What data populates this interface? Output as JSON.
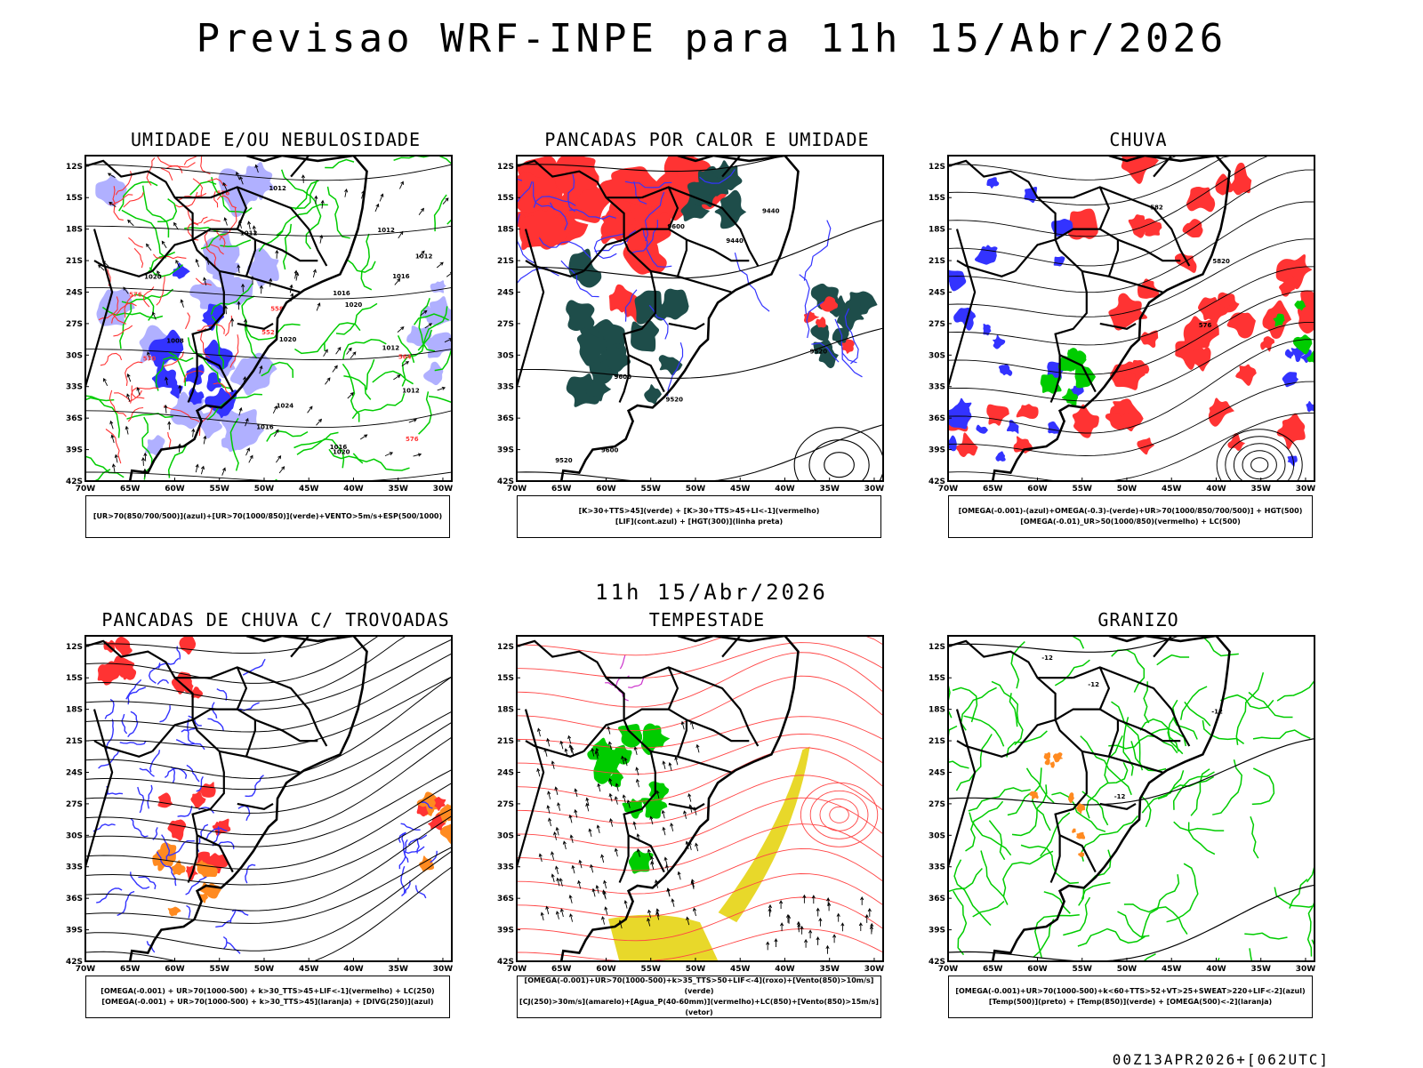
{
  "title": "Previsao WRF-INPE  para 11h 15/Abr/2026",
  "subtitle": "11h 15/Abr/2026",
  "footer": "00Z13APR2026+[062UTC]",
  "axes": {
    "lat_labels": [
      "12S",
      "15S",
      "18S",
      "21S",
      "24S",
      "27S",
      "30S",
      "33S",
      "36S",
      "39S",
      "42S"
    ],
    "lon_labels": [
      "70W",
      "65W",
      "60W",
      "55W",
      "50W",
      "45W",
      "40W",
      "35W",
      "30W"
    ]
  },
  "colors": {
    "red": "#ff3333",
    "blue": "#3333ff",
    "green": "#00cc00",
    "lightblue": "#b0b0ff",
    "darkteal": "#1e4d4a",
    "orange": "#ff8a20",
    "yellow": "#e8d82a",
    "magenta": "#cc33cc"
  },
  "panels": [
    {
      "id": "umidade",
      "title": "UMIDADE E/OU NEBULOSIDADE",
      "legend": [
        "[UR>70(850/700/500)](azul)+[UR>70(1000/850)](verde)+VENTO>5m/s+ESP(500/1000)"
      ],
      "contour_labels": [
        "1012",
        "1012",
        "1012",
        "1016",
        "1012",
        "1016",
        "1012",
        "1008",
        "1020",
        "1016",
        "1012",
        "1016",
        "1020",
        "1020",
        "1024",
        "1020",
        "570",
        "576",
        "576",
        "576",
        "552",
        "558",
        "564"
      ]
    },
    {
      "id": "pancadas_calor",
      "title": "PANCADAS POR CALOR E UMIDADE",
      "legend": [
        "[K>30+TTS>45](verde) + [K>30+TTS>45+LI<-1](vermelho)",
        "[LIF](cont.azul) + [HGT(300)](linha preta)"
      ],
      "contour_labels": [
        "9520",
        "9600",
        "9600",
        "9600",
        "9520",
        "9440",
        "9520",
        "9440"
      ]
    },
    {
      "id": "chuva",
      "title": "CHUVA",
      "legend": [
        "[OMEGA(-0.001)-(azul)+OMEGA(-0.3)-(verde)+UR>70(1000/850/700/500)] + HGT(500)",
        "[OMEGA(-0.01)_UR>50(1000/850)(vermelho) + LC(500)"
      ],
      "contour_labels": [
        "5820",
        "582",
        "576"
      ]
    },
    {
      "id": "pancadas_trovoadas",
      "title": "PANCADAS DE CHUVA C/ TROVOADAS",
      "legend": [
        "[OMEGA(-0.001) + UR>70(1000-500) + k>30_TTS>45+LIF<-1](vermelho) + LC(250)",
        "[OMEGA(-0.001) + UR>70(1000-500) + k>30_TTS>45](laranja) + [DIVG(250)](azul)"
      ],
      "contour_labels": []
    },
    {
      "id": "tempestade",
      "title": "TEMPESTADE",
      "legend": [
        "[OMEGA(-0.001)+UR>70(1000-500)+k>35_TTS>50+LIF<-4](roxo)+[Vento(850)>10m/s](verde)",
        "[CJ(250)>30m/s](amarelo)+[Agua_P(40-60mm)](vermelho)+LC(850)+[Vento(850)>15m/s](vetor)"
      ],
      "contour_labels": []
    },
    {
      "id": "granizo",
      "title": "GRANIZO",
      "legend": [
        "[OMEGA(-0.001)+UR>70(1000-500)+k<60+TTS>52+VT>25+SWEAT>220+LIF<-2](azul)",
        "[Temp(500)](preto) + [Temp(850)](verde) + [OMEGA(500)<-2](laranja)"
      ],
      "contour_labels": [
        "-12",
        "-12",
        "-12",
        "-12"
      ]
    }
  ]
}
